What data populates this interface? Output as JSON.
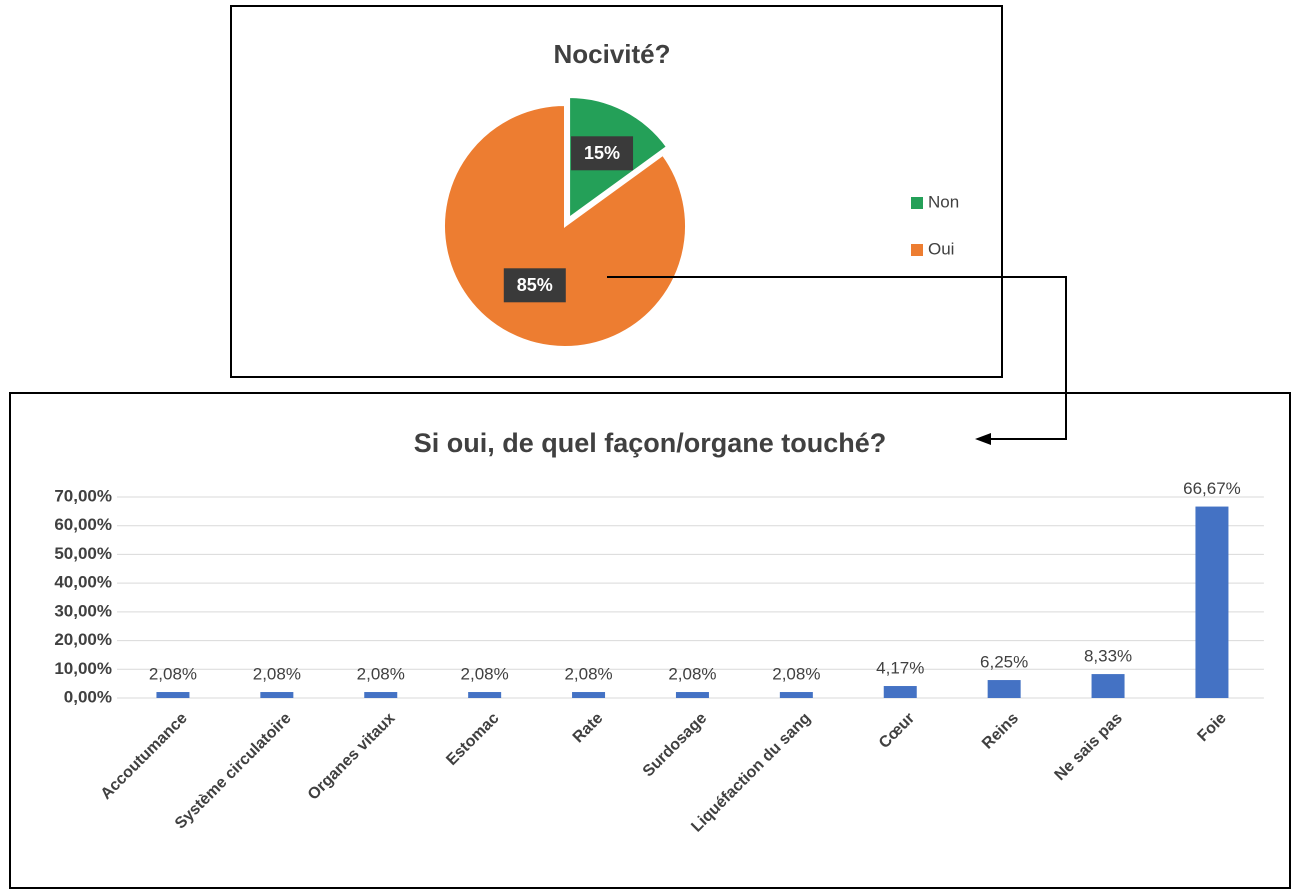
{
  "chart_data": [
    {
      "type": "pie",
      "title": "Nocivité?",
      "categories": [
        "Non",
        "Oui"
      ],
      "values": [
        15,
        85
      ],
      "value_labels": [
        "15%",
        "85%"
      ],
      "colors": [
        "#24a058",
        "#ed7d31"
      ],
      "legend": "right"
    },
    {
      "type": "bar",
      "title": "Si oui, de quel façon/organe touché?",
      "categories": [
        "Accoutumance",
        "Système circulatoire",
        "Organes vitaux",
        "Estomac",
        "Rate",
        "Surdosage",
        "Liquéfaction du sang",
        "Cœur",
        "Reins",
        "Ne sais pas",
        "Foie"
      ],
      "values": [
        2.08,
        2.08,
        2.08,
        2.08,
        2.08,
        2.08,
        2.08,
        4.17,
        6.25,
        8.33,
        66.67
      ],
      "value_labels": [
        "2,08%",
        "2,08%",
        "2,08%",
        "2,08%",
        "2,08%",
        "2,08%",
        "2,08%",
        "4,17%",
        "6,25%",
        "8,33%",
        "66,67%"
      ],
      "color": "#4472c4",
      "ylim": [
        0,
        70
      ],
      "yticks": [
        {
          "value": 0,
          "label": "0,00%"
        },
        {
          "value": 10,
          "label": "10,00%"
        },
        {
          "value": 20,
          "label": "20,00%"
        },
        {
          "value": 30,
          "label": "30,00%"
        },
        {
          "value": 40,
          "label": "40,00%"
        },
        {
          "value": 50,
          "label": "50,00%"
        },
        {
          "value": 60,
          "label": "60,00%"
        },
        {
          "value": 70,
          "label": "70,00%"
        }
      ],
      "grid": true
    }
  ]
}
